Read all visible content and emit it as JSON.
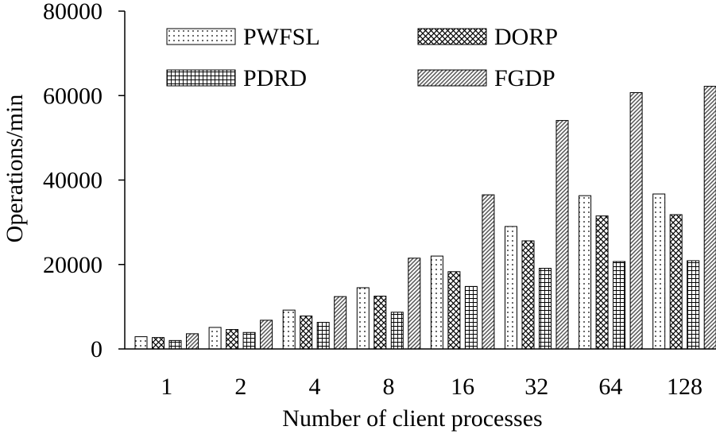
{
  "chart_data": {
    "type": "bar",
    "title": "",
    "xlabel": "Number of client processes",
    "ylabel": "Operations/min",
    "ylim": [
      0,
      80000
    ],
    "yticks": [
      0,
      20000,
      40000,
      60000,
      80000
    ],
    "categories": [
      "1",
      "2",
      "4",
      "8",
      "16",
      "32",
      "64",
      "128"
    ],
    "grid": false,
    "legend_position": "top",
    "series": [
      {
        "name": "PWFSL",
        "pattern": "dots",
        "values": [
          2900,
          5100,
          9200,
          14500,
          22000,
          29000,
          36300,
          36700
        ]
      },
      {
        "name": "DORP",
        "pattern": "crosshatch",
        "values": [
          2700,
          4600,
          7800,
          12500,
          18300,
          25600,
          31500,
          31800
        ]
      },
      {
        "name": "PDRD",
        "pattern": "grid",
        "values": [
          2000,
          3900,
          6300,
          8700,
          14800,
          19100,
          20700,
          20900
        ]
      },
      {
        "name": "FGDP",
        "pattern": "diagonal",
        "values": [
          3600,
          6800,
          12400,
          21500,
          36500,
          54100,
          60700,
          62200
        ]
      }
    ],
    "colors": {
      "stroke": "#000000",
      "background": "#ffffff",
      "fill": "#ffffff"
    }
  }
}
